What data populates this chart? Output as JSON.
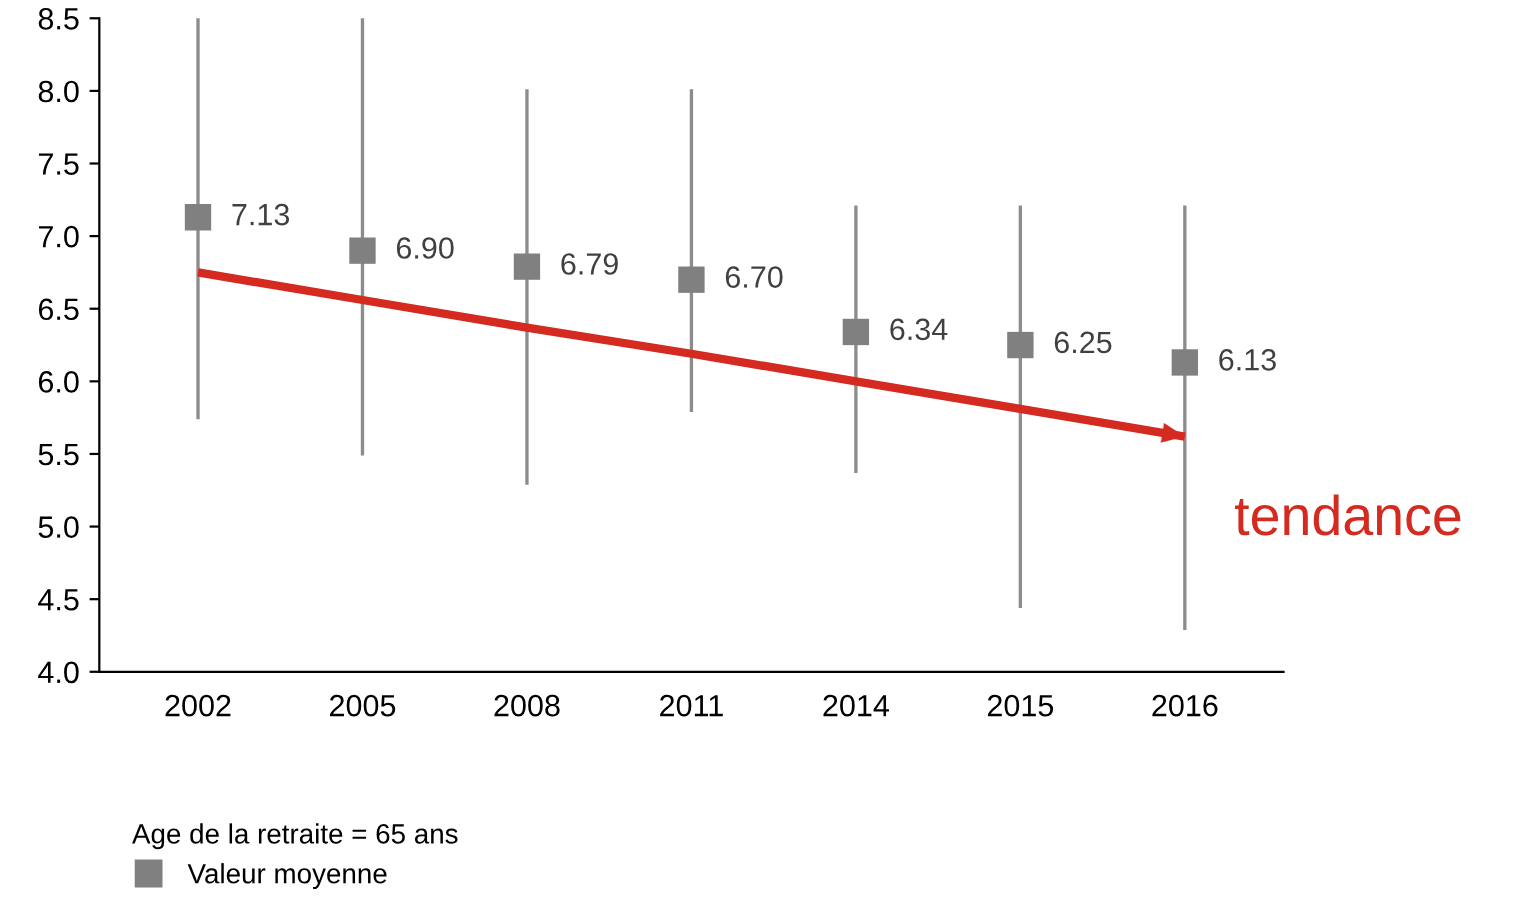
{
  "chart_data": {
    "type": "scatter",
    "categories": [
      "2002",
      "2005",
      "2008",
      "2011",
      "2014",
      "2015",
      "2016"
    ],
    "series": [
      {
        "name": "Valeur moyenne",
        "color": "#808080",
        "marker": "square",
        "values": [
          7.13,
          6.9,
          6.79,
          6.7,
          6.34,
          6.25,
          6.13
        ],
        "errors": [
          [
            5.75,
            8.5
          ],
          [
            5.5,
            8.5
          ],
          [
            5.3,
            8.0
          ],
          [
            5.8,
            8.0
          ],
          [
            5.38,
            7.2
          ],
          [
            4.45,
            7.2
          ],
          [
            4.3,
            7.2
          ]
        ],
        "value_labels": [
          "7.13",
          "6.90",
          "6.79",
          "6.70",
          "6.34",
          "6.25",
          "6.13"
        ]
      },
      {
        "name": "tendance",
        "type": "line",
        "color": "#d42a20",
        "marker": "none",
        "values": [
          6.75,
          6.56,
          6.37,
          6.19,
          6.0,
          5.81,
          5.62
        ]
      }
    ],
    "legend_title": "Age de la retraite = 65 ans",
    "legend": "bottom left",
    "ylim": [
      4.0,
      8.5
    ],
    "yticks": [
      {
        "value": 4,
        "label": "4.0"
      },
      4.5,
      {
        "value": 5,
        "label": "5.0"
      },
      5.5,
      {
        "value": 6,
        "label": "6.0"
      },
      6.5,
      {
        "value": 7,
        "label": "7.0"
      },
      7.5,
      {
        "value": 8,
        "label": "8.0"
      },
      8.5
    ],
    "grid": false
  }
}
